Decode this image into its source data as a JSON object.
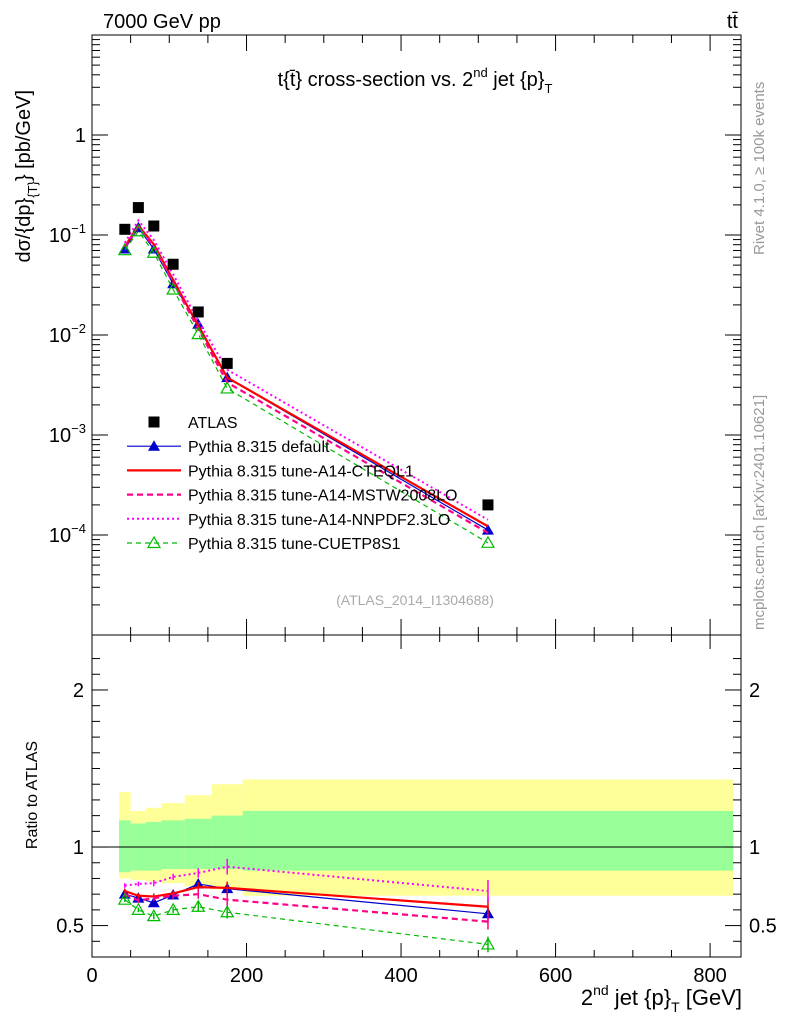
{
  "header": {
    "energy_label": "7000 GeV pp",
    "process_label": "tt̄"
  },
  "side": {
    "rivet_label": "Rivet 4.1.0, ≥ 100k events",
    "mcplots_label": "mcplots.cern.ch [arXiv:2401.10621]"
  },
  "chart_data": [
    {
      "type": "line",
      "panel": "main",
      "title": "t{t̄} cross-section vs. 2nd jet {p}T",
      "title_parts": {
        "main": "t{t̄} cross-section vs. 2",
        "sup": "nd",
        "after": " jet {p}",
        "sub": "T"
      },
      "ylabel": "dσ/{dp}{T} [pb/GeV]",
      "ylabel_parts": {
        "main": "dσ/{dp}",
        "sub": "{T}",
        "after": "} [pb/GeV]"
      },
      "xlim": [
        0,
        840
      ],
      "ylim": [
        1e-05,
        10
      ],
      "yscale": "log",
      "y_ticks": [
        {
          "value": 1,
          "label": "1"
        },
        {
          "value": 0.1,
          "base": "10",
          "exp": "−1"
        },
        {
          "value": 0.01,
          "base": "10",
          "exp": "−2"
        },
        {
          "value": 0.001,
          "base": "10",
          "exp": "−3"
        },
        {
          "value": 0.0001,
          "base": "10",
          "exp": "−4"
        }
      ],
      "watermark": "(ATLAS_2014_I1304688)",
      "legend_position": "lower-left",
      "x": [
        42.5,
        60,
        80,
        105,
        137.5,
        175,
        512.5
      ],
      "x_edges": [
        35,
        50,
        70,
        90,
        120,
        155,
        195,
        830
      ],
      "series": [
        {
          "name": "ATLAS",
          "color": "#000000",
          "style": "data",
          "marker": "square",
          "values": [
            0.114,
            0.188,
            0.123,
            0.051,
            0.017,
            0.0052,
            0.0002
          ]
        },
        {
          "name": "Pythia 8.315 default",
          "color": "#0000cc",
          "style": "solid-thin",
          "marker": "triangle",
          "values": [
            0.0725,
            0.118,
            0.0725,
            0.0325,
            0.0128,
            0.00375,
            0.000112
          ]
        },
        {
          "name": "Pythia 8.315 tune-A14-CTEQL1",
          "color": "#ff0000",
          "style": "solid-thick",
          "marker": "none",
          "values": [
            0.0765,
            0.124,
            0.0805,
            0.0355,
            0.0124,
            0.00375,
            0.000122
          ]
        },
        {
          "name": "Pythia 8.315 tune-A14-MSTW2008LO",
          "color": "#ff0088",
          "style": "dashed",
          "marker": "none",
          "values": [
            0.0755,
            0.122,
            0.0765,
            0.0335,
            0.0115,
            0.00335,
            0.000105
          ]
        },
        {
          "name": "Pythia 8.315 tune-A14-NNPDF2.3LO",
          "color": "#ff00ff",
          "style": "dotted",
          "marker": "none",
          "values": [
            0.0835,
            0.14,
            0.089,
            0.0405,
            0.0138,
            0.0045,
            0.000142
          ]
        },
        {
          "name": "Pythia 8.315 tune-CUETP8S1",
          "color": "#00bb00",
          "style": "dashed-thin",
          "marker": "open-triangle",
          "values": [
            0.0705,
            0.109,
            0.0665,
            0.0285,
            0.0102,
            0.00292,
            8.35e-05
          ]
        }
      ]
    },
    {
      "type": "line",
      "panel": "ratio",
      "ylabel": "Ratio to ATLAS",
      "xlabel": "2nd jet {p}T [GeV]",
      "xlabel_parts": {
        "main": "2",
        "sup": "nd",
        "after": " jet {p}",
        "sub": "T",
        "unit": " [GeV]"
      },
      "xlim": [
        0,
        840
      ],
      "ylim": [
        0.3,
        2.35
      ],
      "x_ticks": [
        0,
        200,
        400,
        600,
        800
      ],
      "y_ticks": [
        0.5,
        1,
        2
      ],
      "reference_line": 1,
      "x": [
        42.5,
        60,
        80,
        105,
        137.5,
        175,
        512.5
      ],
      "x_edges": [
        35,
        50,
        70,
        90,
        120,
        155,
        195,
        830
      ],
      "band_stat_sys": [
        {
          "lo": 0.84,
          "hi": 1.17
        },
        {
          "lo": 0.85,
          "hi": 1.15
        },
        {
          "lo": 0.85,
          "hi": 1.16
        },
        {
          "lo": 0.86,
          "hi": 1.17
        },
        {
          "lo": 0.86,
          "hi": 1.18
        },
        {
          "lo": 0.86,
          "hi": 1.2
        },
        {
          "lo": 0.85,
          "hi": 1.23
        }
      ],
      "band_total": [
        {
          "lo": 0.8,
          "hi": 1.35
        },
        {
          "lo": 0.79,
          "hi": 1.23
        },
        {
          "lo": 0.78,
          "hi": 1.25
        },
        {
          "lo": 0.77,
          "hi": 1.28
        },
        {
          "lo": 0.75,
          "hi": 1.33
        },
        {
          "lo": 0.73,
          "hi": 1.4
        },
        {
          "lo": 0.69,
          "hi": 1.43
        }
      ],
      "series": [
        {
          "name": "Pythia 8.315 default",
          "color": "#0000cc",
          "style": "solid-thin",
          "marker": "triangle",
          "values": [
            0.7,
            0.675,
            0.645,
            0.695,
            0.765,
            0.735,
            0.575
          ],
          "errors": [
            0.015,
            0.015,
            0.02,
            0.02,
            0.03,
            0.04,
            0.05
          ]
        },
        {
          "name": "Pythia 8.315 tune-A14-CTEQL1",
          "color": "#ff0000",
          "style": "solid-thick",
          "marker": "none",
          "values": [
            0.72,
            0.69,
            0.685,
            0.705,
            0.745,
            0.74,
            0.62
          ],
          "errors": [
            0.015,
            0.015,
            0.02,
            0.02,
            0.03,
            0.04,
            0.06
          ]
        },
        {
          "name": "Pythia 8.315 tune-A14-MSTW2008LO",
          "color": "#ff0088",
          "style": "dashed",
          "marker": "none",
          "values": [
            0.7,
            0.66,
            0.675,
            0.69,
            0.7,
            0.665,
            0.525
          ],
          "errors": [
            0.015,
            0.015,
            0.02,
            0.02,
            0.03,
            0.04,
            0.05
          ]
        },
        {
          "name": "Pythia 8.315 tune-A14-NNPDF2.3LO",
          "color": "#ff00ff",
          "style": "dotted",
          "marker": "none",
          "values": [
            0.755,
            0.765,
            0.77,
            0.81,
            0.835,
            0.875,
            0.72
          ],
          "errors": [
            0.015,
            0.015,
            0.02,
            0.02,
            0.03,
            0.05,
            0.07
          ]
        },
        {
          "name": "Pythia 8.315 tune-CUETP8S1",
          "color": "#00bb00",
          "style": "dashed-thin",
          "marker": "open-triangle",
          "values": [
            0.665,
            0.6,
            0.56,
            0.6,
            0.62,
            0.585,
            0.38
          ],
          "errors": [
            0.015,
            0.015,
            0.02,
            0.02,
            0.03,
            0.04,
            0.05
          ]
        }
      ]
    }
  ]
}
